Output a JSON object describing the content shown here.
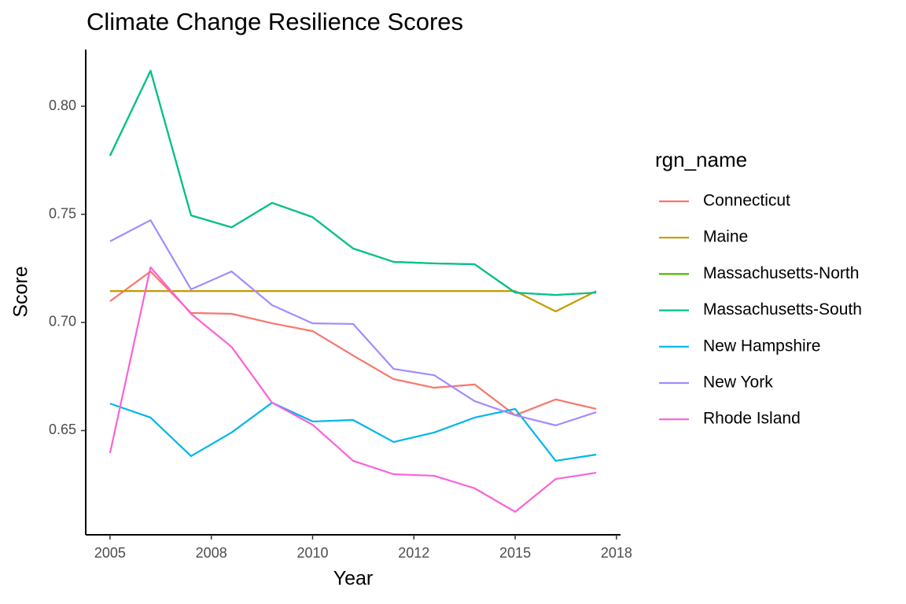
{
  "chart_data": {
    "type": "line",
    "title": "Climate Change Resilience Scores",
    "x_label": "Year",
    "y_label": "Score",
    "legend_title": "rgn_name",
    "legend_position": "right",
    "grid": false,
    "x": [
      2005,
      2006,
      2007,
      2008,
      2009,
      2010,
      2011,
      2012,
      2013,
      2014,
      2015,
      2016,
      2017
    ],
    "xlim": [
      2004.4,
      2017.6
    ],
    "xticks": [
      2005,
      {
        "value": 2007.5,
        "label": "2008"
      },
      2010,
      {
        "value": 2012.5,
        "label": "2012"
      },
      2015,
      {
        "value": 2017.5,
        "label": "2018"
      }
    ],
    "ylim": [
      0.6018,
      0.8262
    ],
    "yticks": [
      0.65,
      {
        "value": 0.7,
        "label": "0.70"
      },
      0.75,
      {
        "value": 0.8,
        "label": "0.80"
      }
    ],
    "series": [
      {
        "name": "Connecticut",
        "color": "#F8766D",
        "values": [
          0.7098,
          0.7236,
          0.7044,
          0.704,
          0.6996,
          0.696,
          0.6847,
          0.6738,
          0.6698,
          0.6713,
          0.6571,
          0.6644,
          0.66
        ]
      },
      {
        "name": "Maine",
        "color": "#C49A00",
        "values": [
          0.7145,
          0.7145,
          0.7145,
          0.7145,
          0.7145,
          0.7145,
          0.7145,
          0.7145,
          0.7145,
          0.7145,
          0.7145,
          0.7051,
          0.7145
        ]
      },
      {
        "name": "Massachusetts-North",
        "color": "#53B400",
        "values": [
          0.7771,
          0.8164,
          0.7495,
          0.744,
          0.7553,
          0.7487,
          0.7342,
          0.728,
          0.7273,
          0.7269,
          0.7138,
          0.7127,
          0.7138
        ]
      },
      {
        "name": "Massachusetts-South",
        "color": "#00C094",
        "values": [
          0.7771,
          0.8164,
          0.7495,
          0.744,
          0.7553,
          0.7487,
          0.7342,
          0.728,
          0.7273,
          0.7269,
          0.7138,
          0.7127,
          0.7138
        ]
      },
      {
        "name": "New Hampshire",
        "color": "#00B6EB",
        "values": [
          0.6625,
          0.656,
          0.6382,
          0.6491,
          0.6629,
          0.6542,
          0.6549,
          0.6447,
          0.6491,
          0.656,
          0.66,
          0.636,
          0.6389
        ]
      },
      {
        "name": "New York",
        "color": "#A58AFF",
        "values": [
          0.7375,
          0.7473,
          0.7153,
          0.7236,
          0.708,
          0.6996,
          0.6993,
          0.6785,
          0.6756,
          0.6636,
          0.6571,
          0.6524,
          0.6585
        ]
      },
      {
        "name": "Rhode Island",
        "color": "#FB61D7",
        "values": [
          0.6396,
          0.7255,
          0.704,
          0.6887,
          0.6629,
          0.6527,
          0.636,
          0.6298,
          0.6291,
          0.6233,
          0.6124,
          0.6276,
          0.6305
        ]
      }
    ]
  }
}
